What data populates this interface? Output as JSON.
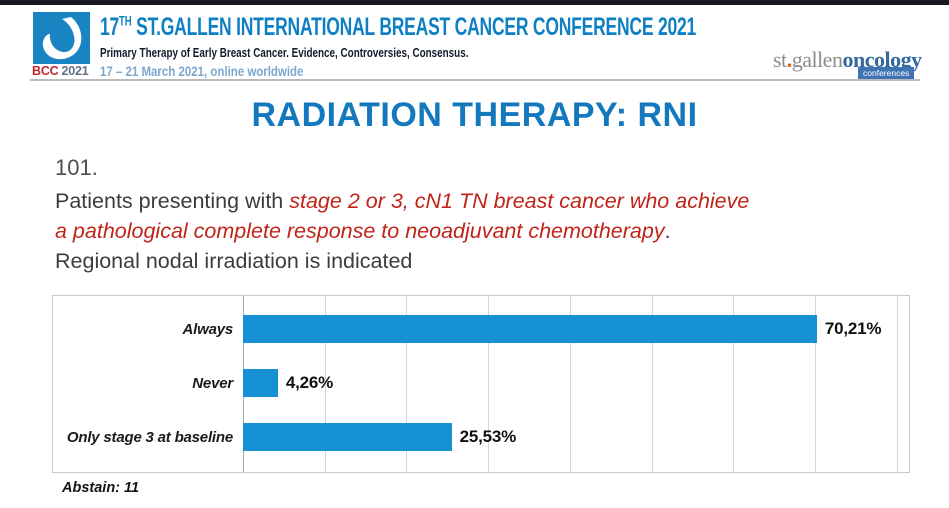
{
  "header": {
    "logo": {
      "bcc": "BCC",
      "year": "2021"
    },
    "title_prefix": "17",
    "title_sup": "TH",
    "title_rest": " ST.GALLEN INTERNATIONAL BREAST CANCER CONFERENCE 2021",
    "subtitle": "Primary Therapy of Early Breast Cancer. Evidence, Controversies, Consensus.",
    "dates": "17 – 21 March 2021, online worldwide",
    "brand": {
      "st": "st",
      "dot": ".",
      "gallen": "gallen",
      "oncology": "oncology",
      "conferences": "conferences"
    }
  },
  "slide": {
    "title": "RADIATION THERAPY: RNI",
    "question_number": "101.",
    "q_intro": "Patients presenting with ",
    "q_red_line1": "stage 2 or 3, cN1 TN breast cancer who achieve",
    "q_red_line2": "a pathological complete response to neoadjuvant chemotherapy",
    "q_period": ".",
    "q_line3": "Regional nodal irradiation is indicated",
    "abstain": "Abstain: 11"
  },
  "chart_data": {
    "type": "bar",
    "orientation": "horizontal",
    "categories": [
      "Always",
      "Never",
      "Only stage 3 at baseline"
    ],
    "values": [
      70.21,
      4.26,
      25.53
    ],
    "value_labels": [
      "70,21%",
      "4,26%",
      "25,53%"
    ],
    "title": "",
    "xlabel": "",
    "ylabel": "",
    "xlim": [
      0,
      81
    ],
    "gridline_step": 10,
    "grid": true,
    "legend_position": "none",
    "bar_color": "#1690d5"
  },
  "colors": {
    "accent_blue": "#1478be",
    "header_blue": "#0f7fc3",
    "bar_blue": "#1690d5",
    "highlight_red": "#c12318",
    "date_blue": "#7ba7cf",
    "dark_navy": "#141b2e",
    "bcc_red": "#c3272e",
    "brand_orange": "#e05a1a",
    "brand_gray": "#8d8d8d"
  }
}
